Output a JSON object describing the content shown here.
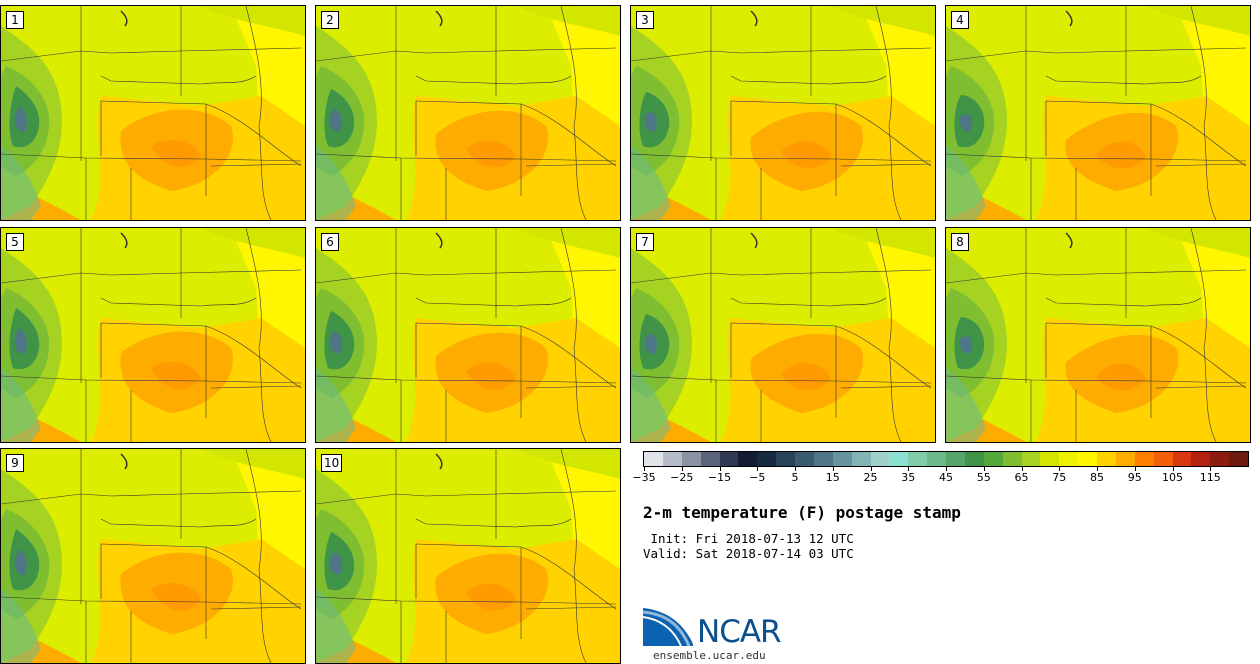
{
  "panels": [
    {
      "label": "1"
    },
    {
      "label": "2"
    },
    {
      "label": "3"
    },
    {
      "label": "4"
    },
    {
      "label": "5"
    },
    {
      "label": "6"
    },
    {
      "label": "7"
    },
    {
      "label": "8"
    },
    {
      "label": "9"
    },
    {
      "label": "10"
    }
  ],
  "colorbar": {
    "colors": [
      "#e0e4eb",
      "#b7bdc8",
      "#8a92a4",
      "#5a647a",
      "#2f3a52",
      "#131c33",
      "#182a40",
      "#284258",
      "#3a5c70",
      "#4f7686",
      "#67959f",
      "#82b4b3",
      "#9fd0c9",
      "#89e0d0",
      "#7fcca9",
      "#6cb98d",
      "#58a56c",
      "#3f9447",
      "#54a83b",
      "#7ebe30",
      "#a6d322",
      "#d3e600",
      "#eef200",
      "#fff600",
      "#ffd200",
      "#ffac00",
      "#ff8000",
      "#f45d0a",
      "#d93612",
      "#b2220f",
      "#8e1b10",
      "#6c1a10"
    ],
    "tick_labels": [
      "−35",
      "−25",
      "−15",
      "−5",
      "5",
      "15",
      "25",
      "35",
      "45",
      "55",
      "65",
      "75",
      "85",
      "95",
      "105",
      "115"
    ],
    "unit": "F"
  },
  "title": "2-m temperature (F) postage stamp",
  "init_line": " Init: Fri 2018-07-13 12 UTC",
  "valid_line": "Valid: Sat 2018-07-14 03 UTC",
  "logo": {
    "wordmark": "NCAR",
    "url": "ensemble.ucar.edu"
  }
}
